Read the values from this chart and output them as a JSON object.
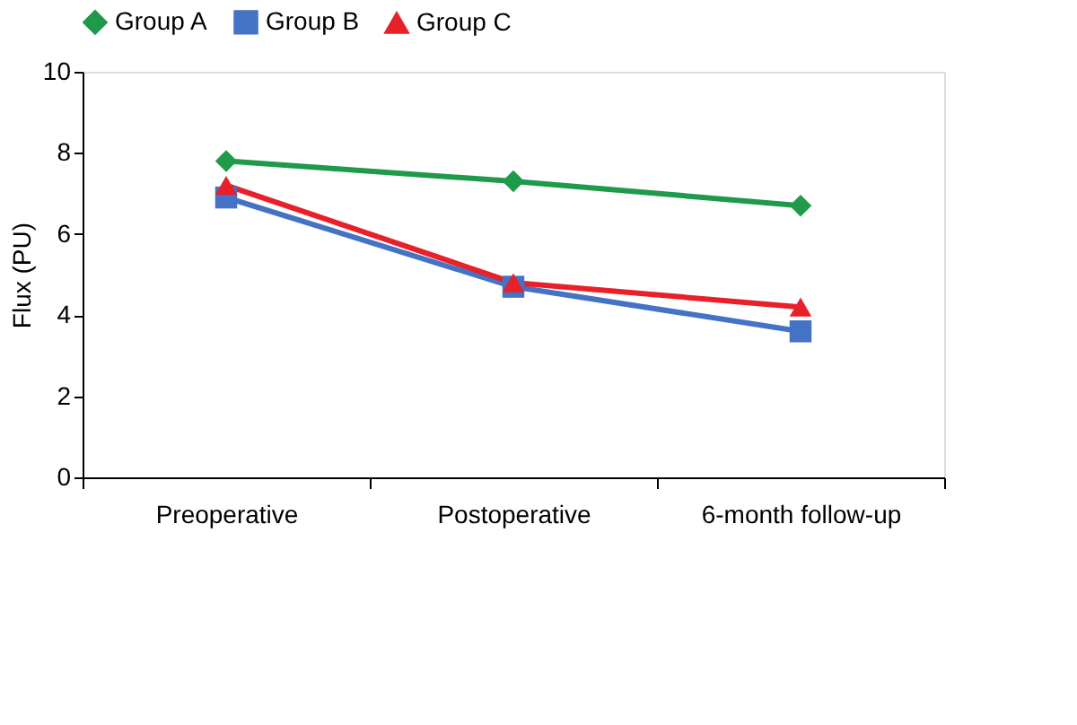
{
  "chart_data": {
    "type": "line",
    "categories": [
      "Preoperative",
      "Postoperative",
      "6-month follow-up"
    ],
    "ylabel": "Flux (PU)",
    "ylim": [
      0,
      10
    ],
    "yticks": [
      0,
      2,
      4,
      6,
      8,
      10
    ],
    "grid": false,
    "legend": "top",
    "series": [
      {
        "name": "Group A",
        "color": "#1f9a4a",
        "marker": "diamond",
        "values": [
          7.8,
          7.3,
          6.7
        ]
      },
      {
        "name": "Group B",
        "color": "#4472c4",
        "marker": "square",
        "values": [
          6.9,
          4.7,
          3.6
        ]
      },
      {
        "name": "Group C",
        "color": "#e8202a",
        "marker": "triangle",
        "values": [
          7.2,
          4.8,
          4.2
        ]
      }
    ]
  }
}
